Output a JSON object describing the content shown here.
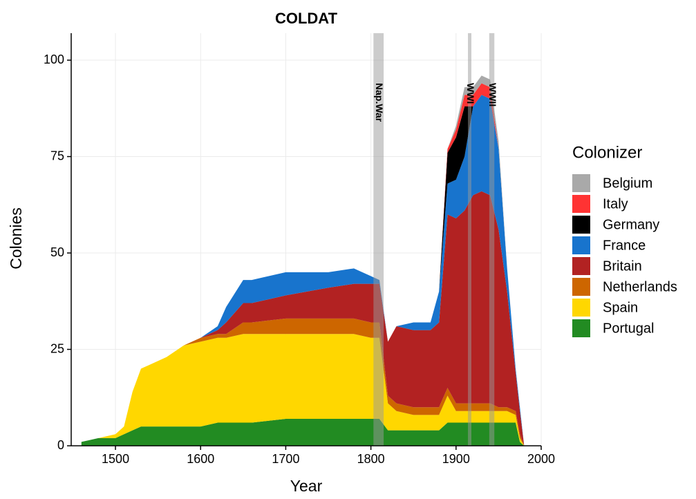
{
  "chart_data": {
    "type": "stacked_area",
    "title": "COLDAT",
    "x_label": "Year",
    "y_label": "Colonies",
    "legend_title": "Colonizer",
    "legend_position": "right",
    "grid": true,
    "xlim": [
      1448,
      2000
    ],
    "ylim": [
      0,
      107
    ],
    "xticks": [
      1500,
      1600,
      1700,
      1800,
      1900,
      2000
    ],
    "yticks": [
      0,
      25,
      50,
      75,
      100
    ],
    "x": [
      1460,
      1480,
      1500,
      1510,
      1520,
      1530,
      1540,
      1560,
      1580,
      1600,
      1620,
      1630,
      1650,
      1660,
      1700,
      1750,
      1780,
      1800,
      1810,
      1820,
      1830,
      1850,
      1870,
      1880,
      1890,
      1900,
      1910,
      1920,
      1930,
      1940,
      1950,
      1960,
      1970,
      1975,
      1980
    ],
    "series": [
      {
        "name": "Belgium",
        "color": "#a9a9a9",
        "values": [
          0,
          0,
          0,
          0,
          0,
          0,
          0,
          0,
          0,
          0,
          0,
          0,
          0,
          0,
          0,
          0,
          0,
          0,
          0,
          0,
          0,
          0,
          0,
          0,
          0,
          1,
          2,
          2,
          2,
          2,
          2,
          0,
          0,
          0,
          0
        ]
      },
      {
        "name": "Italy",
        "color": "#ff3333",
        "values": [
          0,
          0,
          0,
          0,
          0,
          0,
          0,
          0,
          0,
          0,
          0,
          0,
          0,
          0,
          0,
          0,
          0,
          0,
          0,
          0,
          0,
          0,
          0,
          0,
          1,
          2,
          3,
          3,
          3,
          3,
          0,
          0,
          0,
          0,
          0
        ]
      },
      {
        "name": "Germany",
        "color": "#000000",
        "values": [
          0,
          0,
          0,
          0,
          0,
          0,
          0,
          0,
          0,
          0,
          0,
          0,
          0,
          0,
          0,
          0,
          0,
          0,
          0,
          0,
          0,
          0,
          0,
          0,
          8,
          11,
          13,
          0,
          0,
          0,
          0,
          0,
          0,
          0,
          0
        ]
      },
      {
        "name": "France",
        "color": "#1874cd",
        "values": [
          0,
          0,
          0,
          0,
          0,
          0,
          0,
          0,
          0,
          0,
          1,
          4,
          6,
          6,
          6,
          4,
          4,
          2,
          1,
          0,
          0,
          2,
          2,
          8,
          8,
          10,
          14,
          23,
          25,
          25,
          21,
          6,
          1,
          1,
          0
        ]
      },
      {
        "name": "Britain",
        "color": "#b22222",
        "values": [
          0,
          0,
          0,
          0,
          0,
          0,
          0,
          0,
          0,
          0,
          1,
          3,
          5,
          5,
          6,
          8,
          9,
          10,
          10,
          14,
          20,
          20,
          20,
          22,
          45,
          48,
          50,
          54,
          55,
          54,
          46,
          30,
          10,
          6,
          0
        ]
      },
      {
        "name": "Netherlands",
        "color": "#cd6600",
        "values": [
          0,
          0,
          0,
          0,
          0,
          0,
          0,
          0,
          0,
          1,
          1,
          1,
          3,
          3,
          4,
          4,
          4,
          4,
          4,
          2,
          2,
          2,
          2,
          2,
          2,
          2,
          2,
          2,
          2,
          2,
          1,
          1,
          1,
          1,
          0
        ]
      },
      {
        "name": "Spain",
        "color": "#ffd700",
        "values": [
          0,
          0,
          1,
          2,
          10,
          15,
          16,
          18,
          21,
          22,
          22,
          22,
          23,
          23,
          22,
          22,
          22,
          21,
          21,
          7,
          5,
          4,
          4,
          4,
          7,
          3,
          3,
          3,
          3,
          3,
          3,
          3,
          2,
          1,
          0
        ]
      },
      {
        "name": "Portugal",
        "color": "#228b22",
        "values": [
          1,
          2,
          2,
          3,
          4,
          5,
          5,
          5,
          5,
          5,
          6,
          6,
          6,
          6,
          7,
          7,
          7,
          7,
          7,
          4,
          4,
          4,
          4,
          4,
          6,
          6,
          6,
          6,
          6,
          6,
          6,
          6,
          6,
          1,
          0
        ]
      }
    ],
    "bands": [
      {
        "label": "Nap.War",
        "start": 1803,
        "end": 1815
      },
      {
        "label": "WWI",
        "start": 1914,
        "end": 1918
      },
      {
        "label": "WWII",
        "start": 1939,
        "end": 1945
      }
    ]
  }
}
